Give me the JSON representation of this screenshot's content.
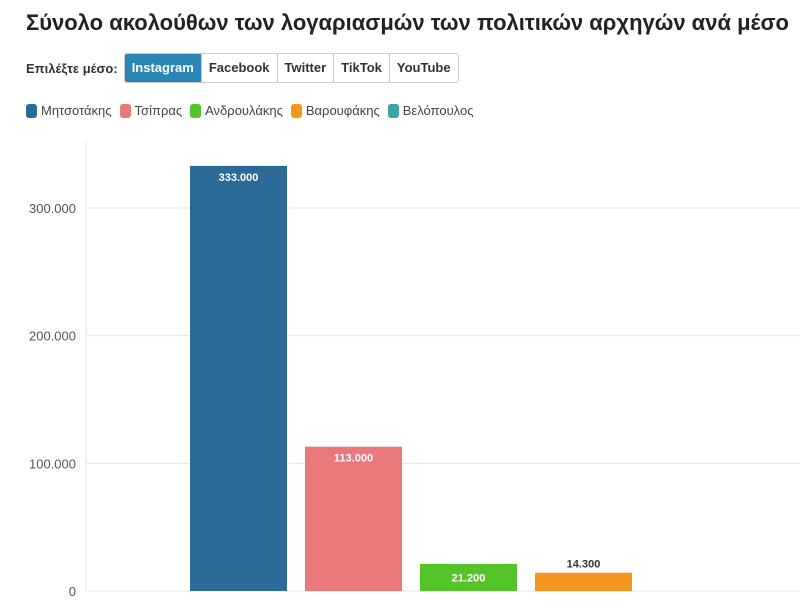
{
  "title": "Σύνολο ακολούθων των λογαριασμών των πολιτικών αρχηγών ανά μέσο",
  "controls": {
    "label": "Επιλέξτε μέσο:",
    "options": [
      "Instagram",
      "Facebook",
      "Twitter",
      "TikTok",
      "YouTube"
    ],
    "selected": "Instagram"
  },
  "colors": {
    "active_button": "#2a86b5"
  },
  "chart_data": {
    "type": "bar",
    "categories": [
      "Μητσοτάκης",
      "Τσίπρας",
      "Ανδρουλάκης",
      "Βαρουφάκης",
      "Βελόπουλος"
    ],
    "values": [
      333000,
      113000,
      21200,
      14300,
      null
    ],
    "value_labels": [
      "333.000",
      "113.000",
      "21.200",
      "14.300",
      ""
    ],
    "colors": [
      "#2c6b98",
      "#e8787a",
      "#55c42a",
      "#f5961e",
      "#3aa5a3"
    ],
    "ylim": [
      0,
      350000
    ],
    "yticks": [
      0,
      100000,
      200000,
      300000
    ],
    "ytick_labels": [
      "0",
      "100.000",
      "200.000",
      "300.000"
    ],
    "grid": true,
    "legend": "top-left"
  }
}
